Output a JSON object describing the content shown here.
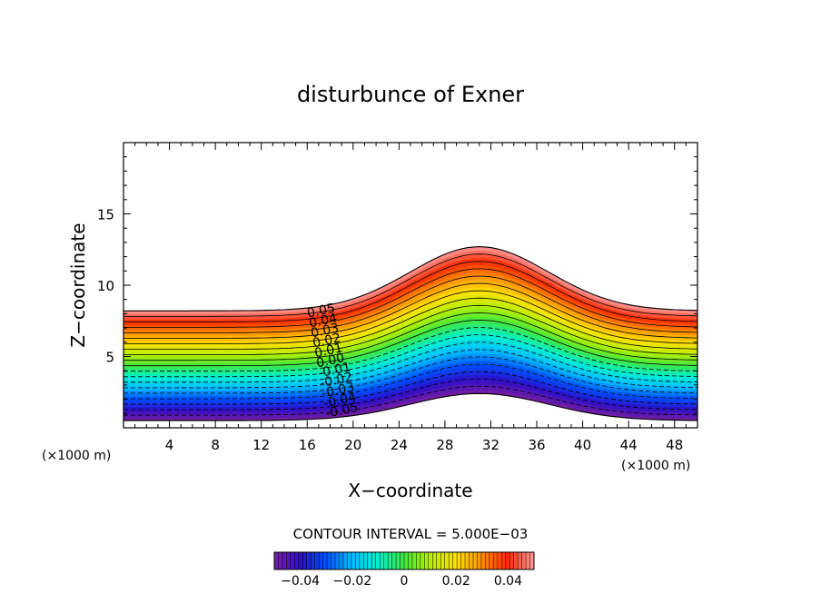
{
  "chart_data": {
    "type": "heatmap",
    "subtype": "filled-contour",
    "title": "disturbunce of Exner",
    "xlabel": "X−coordinate",
    "ylabel": "Z−coordinate",
    "x_unit_label": "(×1000 m)",
    "y_unit_label": "(×1000 m)",
    "xlim": [
      0,
      50
    ],
    "ylim": [
      0,
      20
    ],
    "x_ticks": [
      4,
      8,
      12,
      16,
      20,
      24,
      28,
      32,
      36,
      40,
      44,
      48
    ],
    "x_tick_labels": [
      "4",
      "8",
      "12",
      "16",
      "20",
      "24",
      "28",
      "32",
      "36",
      "40",
      "44",
      "48"
    ],
    "y_ticks": [
      5,
      10,
      15
    ],
    "y_tick_labels": [
      "5",
      "10",
      "15"
    ],
    "contour_interval_text": "CONTOUR INTERVAL = 5.000E−03",
    "contour_interval": 0.005,
    "value_range": [
      -0.05,
      0.05
    ],
    "contour_labels": [
      "0.05",
      "0.04",
      "0.03",
      "0.02",
      "0.01",
      "0.00",
      "-0.01",
      "-0.02",
      "-0.03",
      "-0.04",
      "-0.05"
    ],
    "negative_contours": "dashed",
    "terrain": {
      "description_hidden": false,
      "base_height_lower_km": 0.5,
      "base_height_upper_km": 8.2,
      "hill_center_km": 31,
      "hill_height_lower_km": 1.9,
      "hill_height_upper_km": 4.5
    },
    "colorbar": {
      "colors": [
        "#7a1fa0",
        "#2d0fc8",
        "#0050ff",
        "#00bfff",
        "#00f0d0",
        "#40e840",
        "#b8f000",
        "#ffe000",
        "#ff9000",
        "#ff2a00",
        "#ff9a9a"
      ],
      "tick_values": [
        -0.04,
        -0.02,
        0,
        0.02,
        0.04
      ],
      "tick_labels": [
        "−0.04",
        "−0.02",
        "0",
        "0.02",
        "0.04"
      ]
    }
  }
}
